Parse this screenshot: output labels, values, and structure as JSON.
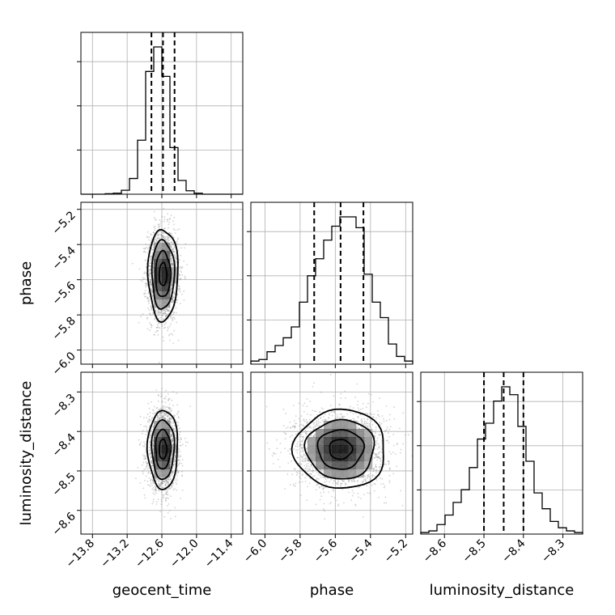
{
  "chart_data": {
    "type": "corner",
    "parameters": [
      "geocent_time",
      "phase",
      "luminosity_distance"
    ],
    "axis_labels": {
      "geocent_time": "geocent_time",
      "phase": "phase",
      "luminosity_distance": "luminosity_distance"
    },
    "ranges": {
      "geocent_time": [
        -14.0,
        -11.2
      ],
      "phase": [
        -6.08,
        -5.16
      ],
      "luminosity_distance": [
        -8.66,
        -8.25
      ]
    },
    "ticks": {
      "geocent_time": {
        "values": [
          -13.8,
          -13.2,
          -12.6,
          -12.0,
          -11.4
        ],
        "labels": [
          "−13.8",
          "−13.2",
          "−12.6",
          "−12.0",
          "−11.4"
        ]
      },
      "phase": {
        "values": [
          -6.0,
          -5.8,
          -5.6,
          -5.4,
          -5.2
        ],
        "labels": [
          "−6.0",
          "−5.8",
          "−5.6",
          "−5.4",
          "−5.2"
        ]
      },
      "luminosity_distance": {
        "values": [
          -8.6,
          -8.5,
          -8.4,
          -8.3
        ],
        "labels": [
          "−8.6",
          "−8.5",
          "−8.4",
          "−8.3"
        ]
      }
    },
    "quantiles": {
      "geocent_time": [
        -12.78,
        -12.58,
        -12.38
      ],
      "phase": [
        -5.72,
        -5.57,
        -5.44
      ],
      "luminosity_distance": [
        -8.5,
        -8.45,
        -8.4
      ]
    },
    "histograms": {
      "geocent_time": {
        "edges": [
          -14.0,
          -13.86,
          -13.72,
          -13.58,
          -13.44,
          -13.3,
          -13.16,
          -13.02,
          -12.88,
          -12.74,
          -12.6,
          -12.46,
          -12.32,
          -12.18,
          -12.04,
          -11.9,
          -11.76,
          -11.62,
          -11.48,
          -11.34,
          -11.2
        ],
        "counts": [
          0,
          0,
          0,
          1,
          2,
          8,
          32,
          110,
          250,
          300,
          240,
          95,
          28,
          7,
          2,
          0,
          0,
          0,
          0,
          0
        ]
      },
      "phase": {
        "edges": [
          -6.08,
          -6.034,
          -5.988,
          -5.942,
          -5.896,
          -5.85,
          -5.804,
          -5.758,
          -5.712,
          -5.666,
          -5.62,
          -5.574,
          -5.528,
          -5.482,
          -5.436,
          -5.39,
          -5.344,
          -5.298,
          -5.252,
          -5.206,
          -5.16
        ],
        "counts": [
          2,
          3,
          8,
          12,
          17,
          24,
          40,
          57,
          68,
          80,
          89,
          95,
          95,
          88,
          58,
          40,
          30,
          13,
          5,
          2
        ]
      },
      "luminosity_distance": {
        "edges": [
          -8.66,
          -8.6395,
          -8.619,
          -8.5985,
          -8.578,
          -8.5575,
          -8.537,
          -8.5165,
          -8.496,
          -8.4755,
          -8.455,
          -8.4345,
          -8.414,
          -8.3935,
          -8.373,
          -8.3525,
          -8.332,
          -8.3115,
          -8.291,
          -8.2705,
          -8.25
        ],
        "counts": [
          1,
          2,
          6,
          12,
          20,
          28,
          42,
          60,
          70,
          84,
          93,
          88,
          68,
          46,
          26,
          16,
          8,
          4,
          2,
          1
        ]
      }
    },
    "pair_distributions": [
      {
        "x": "geocent_time",
        "y": "phase",
        "center": [
          -12.58,
          -5.57
        ],
        "spread": [
          0.13,
          0.13
        ],
        "correlation": 0.0
      },
      {
        "x": "geocent_time",
        "y": "luminosity_distance",
        "center": [
          -12.58,
          -8.445
        ],
        "spread": [
          0.13,
          0.05
        ],
        "correlation": 0.0
      },
      {
        "x": "phase",
        "y": "luminosity_distance",
        "center": [
          -5.57,
          -8.445
        ],
        "spread": [
          0.13,
          0.05
        ],
        "correlation": 0.0
      }
    ],
    "contour_levels": [
      0.5,
      1.0,
      1.5,
      2.0
    ],
    "scatter_color": "#808080",
    "line_color": "#000000",
    "grid": true
  }
}
